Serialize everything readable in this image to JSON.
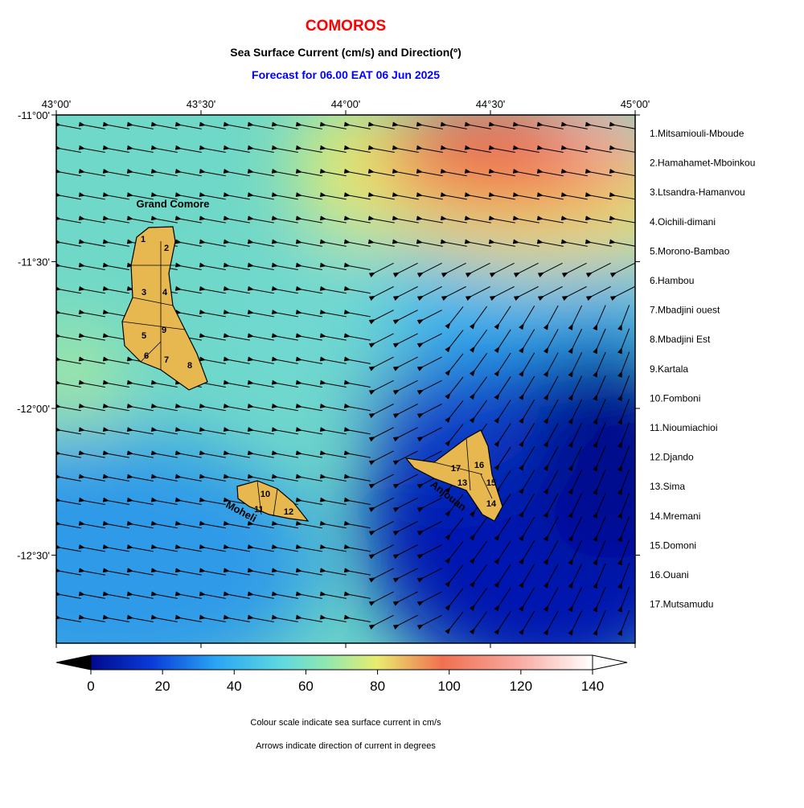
{
  "header": {
    "title": "COMOROS",
    "subtitle": "Sea Surface Current (cm/s) and Direction(º)",
    "forecast": "Forecast for  06.00 EAT 06 Jun 2025"
  },
  "map": {
    "lon_ticks": [
      "43°00'",
      "43°30'",
      "44°00'",
      "44°30'",
      "45°00'"
    ],
    "lat_ticks": [
      "-11°00'",
      "-11°30'",
      "-12°00'",
      "-12°30'"
    ],
    "island_labels": [
      "Grand Comore",
      "Moheli",
      "Anjouan"
    ],
    "region_numbers": [
      "1",
      "2",
      "3",
      "4",
      "5",
      "6",
      "7",
      "8",
      "9",
      "10",
      "11",
      "12",
      "13",
      "14",
      "15",
      "16",
      "17"
    ]
  },
  "legend": {
    "regions": [
      "1.Mitsamiouli-Mboude",
      "2.Hamahamet-Mboinkou",
      "3.Ltsandra-Hamanvou",
      "4.Oichili-dimani",
      "5.Morono-Bambao",
      "6.Hambou",
      "7.Mbadjini ouest",
      "8.Mbadjini Est",
      "9.Kartala",
      "10.Fomboni",
      "11.Nioumiachioi",
      "12.Djando",
      "13.Sima",
      "14.Mremani",
      "15.Domoni",
      "16.Ouani",
      "17.Mutsamudu"
    ]
  },
  "colorbar": {
    "ticks": [
      0,
      20,
      40,
      60,
      80,
      100,
      120,
      140
    ]
  },
  "notes": [
    "Colour scale indicate sea surface current in cm/s",
    "Arrows indicate direction of current in degrees"
  ]
}
